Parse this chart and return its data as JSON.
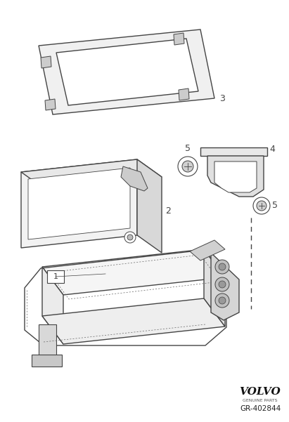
{
  "background_color": "#ffffff",
  "line_color": "#444444",
  "volvo_text": "VOLVO",
  "volvo_sub": "GENUINE PARTS",
  "part_number": "GR-402844",
  "figsize": [
    4.11,
    6.01
  ],
  "dpi": 100
}
